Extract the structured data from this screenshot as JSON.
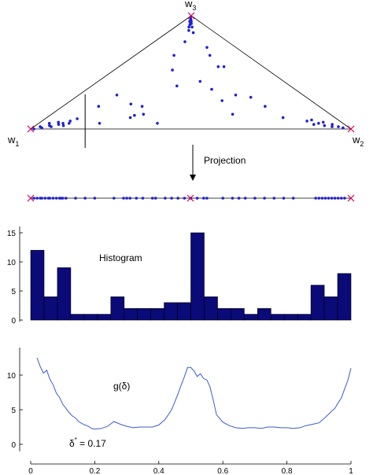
{
  "colors": {
    "point": "#1f1fd6",
    "vertex_marker": "#d6005a",
    "bar_fill": "#0a0a78",
    "bar_stroke": "#000000",
    "curve": "#3a5ad6",
    "line": "#000000"
  },
  "triangle": {
    "vertex_labels": {
      "w1": "w",
      "w1_sub": "1",
      "w2": "w",
      "w2_sub": "2",
      "w3": "w",
      "w3_sub": "3"
    },
    "cut_position": 0.17,
    "points": [
      [
        0.01,
        0.0
      ],
      [
        0.02,
        0.02
      ],
      [
        0.03,
        0.01
      ],
      [
        0.035,
        0.05
      ],
      [
        0.045,
        0.03
      ],
      [
        0.055,
        0.02
      ],
      [
        0.06,
        0.06
      ],
      [
        0.07,
        0.04
      ],
      [
        0.08,
        0.05
      ],
      [
        0.09,
        0.03
      ],
      [
        0.095,
        0.07
      ],
      [
        0.1,
        0.05
      ],
      [
        0.11,
        0.09
      ],
      [
        0.14,
        0.2
      ],
      [
        0.17,
        0.3
      ],
      [
        0.2,
        0.05
      ],
      [
        0.26,
        0.22
      ],
      [
        0.29,
        0.1
      ],
      [
        0.3,
        0.12
      ],
      [
        0.31,
        0.2
      ],
      [
        0.33,
        0.13
      ],
      [
        0.35,
        0.65
      ],
      [
        0.38,
        0.52
      ],
      [
        0.39,
        0.05
      ],
      [
        0.42,
        0.77
      ],
      [
        0.43,
        0.95
      ],
      [
        0.44,
        0.9
      ],
      [
        0.45,
        0.87
      ],
      [
        0.46,
        0.92
      ],
      [
        0.47,
        0.96
      ],
      [
        0.48,
        0.93
      ],
      [
        0.49,
        0.97
      ],
      [
        0.5,
        0.99
      ],
      [
        0.51,
        0.96
      ],
      [
        0.52,
        0.93
      ],
      [
        0.53,
        0.95
      ],
      [
        0.54,
        0.9
      ],
      [
        0.55,
        0.85
      ],
      [
        0.43,
        0.38
      ],
      [
        0.55,
        0.42
      ],
      [
        0.6,
        0.35
      ],
      [
        0.63,
        0.25
      ],
      [
        0.65,
        0.13
      ],
      [
        0.67,
        0.65
      ],
      [
        0.68,
        0.72
      ],
      [
        0.69,
        0.55
      ],
      [
        0.7,
        0.3
      ],
      [
        0.73,
        0.55
      ],
      [
        0.76,
        0.28
      ],
      [
        0.79,
        0.2
      ],
      [
        0.82,
        0.1
      ],
      [
        0.89,
        0.07
      ],
      [
        0.9,
        0.04
      ],
      [
        0.91,
        0.08
      ],
      [
        0.92,
        0.05
      ],
      [
        0.93,
        0.03
      ],
      [
        0.94,
        0.06
      ],
      [
        0.95,
        0.02
      ],
      [
        0.96,
        0.04
      ],
      [
        0.97,
        0.02
      ],
      [
        0.98,
        0.01
      ]
    ]
  },
  "projection": {
    "label": "Projection",
    "points": [
      0.01,
      0.02,
      0.03,
      0.035,
      0.045,
      0.055,
      0.06,
      0.07,
      0.08,
      0.09,
      0.095,
      0.1,
      0.11,
      0.14,
      0.17,
      0.2,
      0.26,
      0.29,
      0.3,
      0.31,
      0.33,
      0.35,
      0.38,
      0.39,
      0.42,
      0.44,
      0.46,
      0.48,
      0.5,
      0.52,
      0.54,
      0.55,
      0.6,
      0.63,
      0.65,
      0.67,
      0.7,
      0.73,
      0.76,
      0.79,
      0.82,
      0.89,
      0.9,
      0.91,
      0.92,
      0.93,
      0.94,
      0.95,
      0.96,
      0.97,
      0.98
    ]
  },
  "chart_data": [
    {
      "type": "bar",
      "title": "Histogram",
      "xlim": [
        0,
        1
      ],
      "ylim": [
        0,
        16
      ],
      "yticks": [
        "0",
        "5",
        "10",
        "15"
      ],
      "bin_width": 0.04,
      "values": [
        12,
        4,
        9,
        1,
        1,
        1,
        4,
        2,
        2,
        2,
        3,
        3,
        15,
        4,
        2,
        2,
        1,
        2,
        1,
        1,
        1,
        6,
        4,
        8
      ]
    },
    {
      "type": "line",
      "title": "g(δ)",
      "annotation": {
        "symbol": "δ",
        "superscript": "*",
        "text": " = 0.17"
      },
      "xlim": [
        0,
        1
      ],
      "ylim": [
        0,
        13
      ],
      "yticks": [
        "0",
        "5",
        "10"
      ],
      "xticks": [
        "0",
        "0.2",
        "0.4",
        "0.6",
        "0.8",
        "1"
      ],
      "x": [
        0.02,
        0.03,
        0.04,
        0.05,
        0.06,
        0.07,
        0.08,
        0.09,
        0.1,
        0.11,
        0.12,
        0.13,
        0.14,
        0.15,
        0.16,
        0.17,
        0.18,
        0.19,
        0.2,
        0.22,
        0.24,
        0.26,
        0.28,
        0.3,
        0.32,
        0.34,
        0.36,
        0.38,
        0.4,
        0.42,
        0.44,
        0.46,
        0.47,
        0.48,
        0.49,
        0.5,
        0.51,
        0.52,
        0.53,
        0.54,
        0.55,
        0.56,
        0.57,
        0.58,
        0.6,
        0.62,
        0.64,
        0.66,
        0.68,
        0.7,
        0.72,
        0.74,
        0.76,
        0.78,
        0.8,
        0.82,
        0.84,
        0.86,
        0.88,
        0.9,
        0.92,
        0.94,
        0.95,
        0.96,
        0.97,
        0.98,
        0.99,
        1.0
      ],
      "y": [
        12.5,
        11.2,
        10.3,
        10.7,
        9.4,
        8.6,
        7.4,
        6.8,
        5.8,
        5.2,
        4.6,
        4.1,
        3.8,
        3.3,
        3.0,
        2.8,
        2.6,
        2.3,
        2.2,
        2.3,
        2.6,
        3.3,
        2.9,
        2.6,
        2.4,
        2.5,
        2.5,
        2.5,
        2.8,
        3.6,
        5.0,
        7.3,
        8.6,
        9.8,
        11.1,
        11.1,
        10.6,
        9.8,
        10.2,
        9.5,
        9.3,
        8.3,
        6.4,
        4.3,
        3.2,
        2.7,
        2.4,
        2.3,
        2.4,
        2.4,
        2.3,
        2.5,
        2.5,
        2.4,
        2.4,
        2.3,
        2.4,
        2.7,
        2.9,
        3.1,
        3.9,
        4.8,
        5.2,
        6.0,
        6.7,
        8.0,
        9.2,
        11.0
      ]
    }
  ]
}
